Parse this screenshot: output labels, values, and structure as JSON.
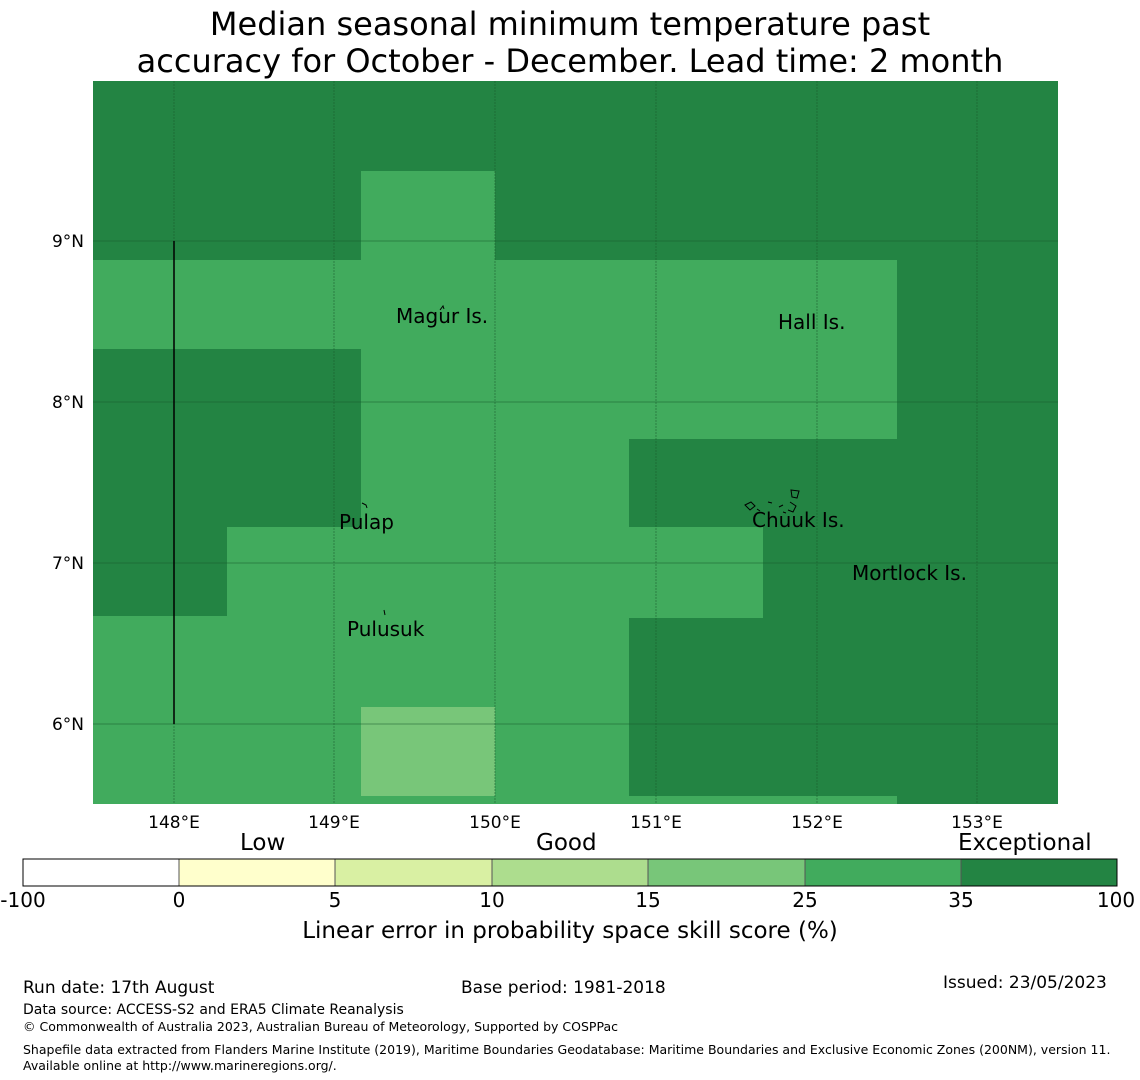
{
  "title": {
    "line1": "Median seasonal minimum temperature past",
    "line2": "accuracy for October - December. Lead time: 2 month"
  },
  "map": {
    "lon_ticks": [
      "148°E",
      "149°E",
      "150°E",
      "151°E",
      "152°E",
      "153°E"
    ],
    "lat_ticks": [
      "9°N",
      "8°N",
      "7°N",
      "6°N"
    ],
    "lon_range": [
      147.5,
      153.5
    ],
    "lat_range": [
      5.5,
      10.0
    ],
    "places": [
      {
        "name": "Magur Is.",
        "lon": 149.37,
        "lat": 8.48
      },
      {
        "name": "Hall Is.",
        "lon": 151.76,
        "lat": 8.44
      },
      {
        "name": "Pulap",
        "lon": 149.03,
        "lat": 7.19
      },
      {
        "name": "Chuuk Is.",
        "lon": 151.62,
        "lat": 7.2
      },
      {
        "name": "Mortlock Is.",
        "lon": 152.22,
        "lat": 6.87
      },
      {
        "name": "Pulusuk",
        "lon": 149.08,
        "lat": 6.53
      }
    ],
    "skill_categories": [
      "exceptional",
      "25-35",
      "15-25"
    ],
    "colors": {
      "exceptional": "#238443",
      "25-35": "#41ab5d",
      "15-25": "#78c679",
      "grid": "#1a5c2e"
    }
  },
  "legend": {
    "categories": [
      "Low",
      "Good",
      "Exceptional"
    ],
    "ticks": [
      "-100",
      "0",
      "5",
      "10",
      "15",
      "25",
      "35",
      "100"
    ],
    "colors": [
      "#ffffff",
      "#ffffcc",
      "#d9f0a3",
      "#addd8e",
      "#78c679",
      "#41ab5d",
      "#238443"
    ],
    "label": "Linear error in probability space skill score (%)"
  },
  "footer": {
    "run_date": "Run date: 17th August",
    "base_period": "Base period: 1981-2018",
    "issued": "Issued: 23/05/2023",
    "data_source": "Data source: ACCESS-S2 and ERA5 Climate Reanalysis",
    "copyright": "© Commonwealth of Australia 2023, Australian Bureau of Meteorology, Supported by COSPPac",
    "shapefile": "Shapefile data extracted from Flanders Marine Institute (2019), Maritime Boundaries Geodatabase: Maritime Boundaries and Exclusive Economic Zones (200NM), version 11. Available online at http://www.marineregions.org/."
  }
}
